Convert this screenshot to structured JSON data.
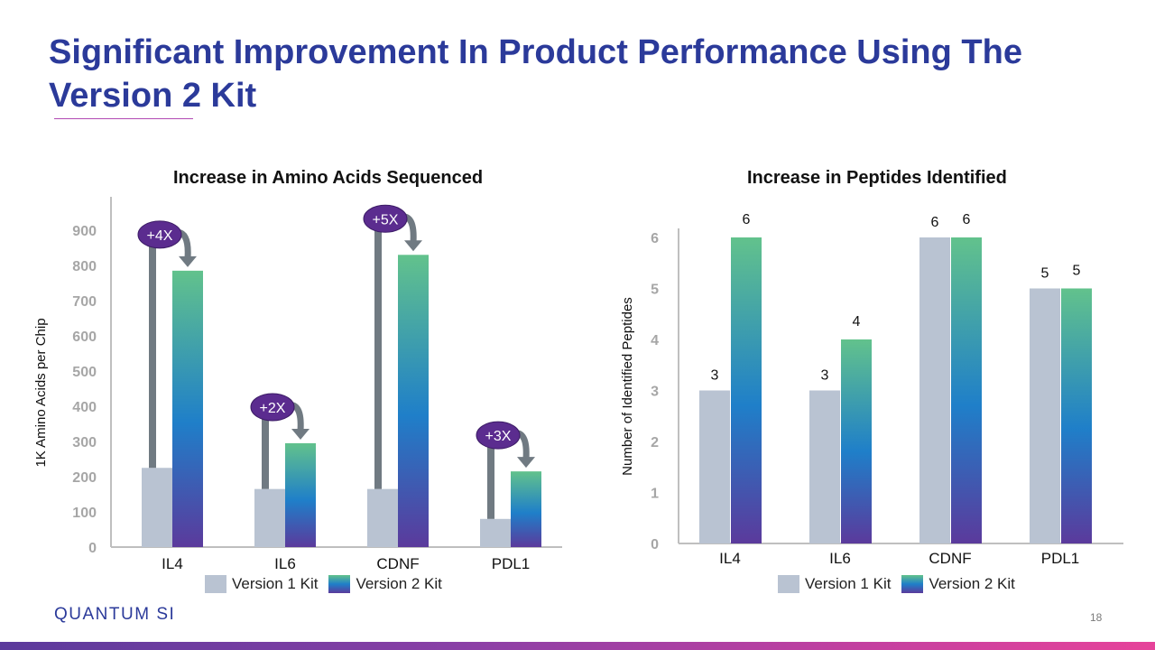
{
  "slide": {
    "title": "Significant Improvement In Product Performance Using The Version 2 Kit",
    "logo_text": "QUANTUM SI",
    "page_number": "18"
  },
  "colors": {
    "title": "#2b3a9a",
    "version1": "#b9c3d2",
    "version2_gradient": [
      "#62c28c",
      "#1f7fc9",
      "#5b3a9c"
    ],
    "annotation_badge": "#5b2c8f",
    "arrow": "#707a82",
    "accent_bar": [
      "#5b3a9c",
      "#e6439a"
    ]
  },
  "legend": {
    "version1_label": "Version 1 Kit",
    "version2_label": "Version 2 Kit"
  },
  "chart_data": [
    {
      "type": "bar",
      "title": "Increase in Amino Acids Sequenced",
      "ylabel": "1K Amino Acids per Chip",
      "xlabel": "",
      "categories": [
        "IL4",
        "IL6",
        "CDNF",
        "PDL1"
      ],
      "ylim": [
        0,
        1000
      ],
      "yticks": [
        0,
        100,
        200,
        300,
        400,
        500,
        600,
        700,
        800,
        900
      ],
      "series": [
        {
          "name": "Version 1 Kit",
          "values": [
            225,
            165,
            165,
            80
          ]
        },
        {
          "name": "Version 2 Kit",
          "values": [
            785,
            295,
            830,
            215
          ]
        }
      ],
      "annotations": [
        "+4X",
        "+2X",
        "+5X",
        "+3X"
      ],
      "legend": "bottom",
      "grid": false
    },
    {
      "type": "bar",
      "title": "Increase in Peptides Identified",
      "ylabel": "Number of Identified Peptides",
      "xlabel": "",
      "categories": [
        "IL4",
        "IL6",
        "CDNF",
        "PDL1"
      ],
      "ylim": [
        0,
        6.5
      ],
      "yticks": [
        0,
        1,
        2,
        3,
        4,
        5,
        6
      ],
      "series": [
        {
          "name": "Version 1 Kit",
          "values": [
            3,
            3,
            6,
            5
          ]
        },
        {
          "name": "Version 2 Kit",
          "values": [
            6,
            4,
            6,
            5
          ]
        }
      ],
      "data_labels": [
        [
          "3",
          "3",
          "6",
          "5"
        ],
        [
          "6",
          "4",
          "6",
          "5"
        ]
      ],
      "legend": "bottom",
      "grid": false
    }
  ]
}
